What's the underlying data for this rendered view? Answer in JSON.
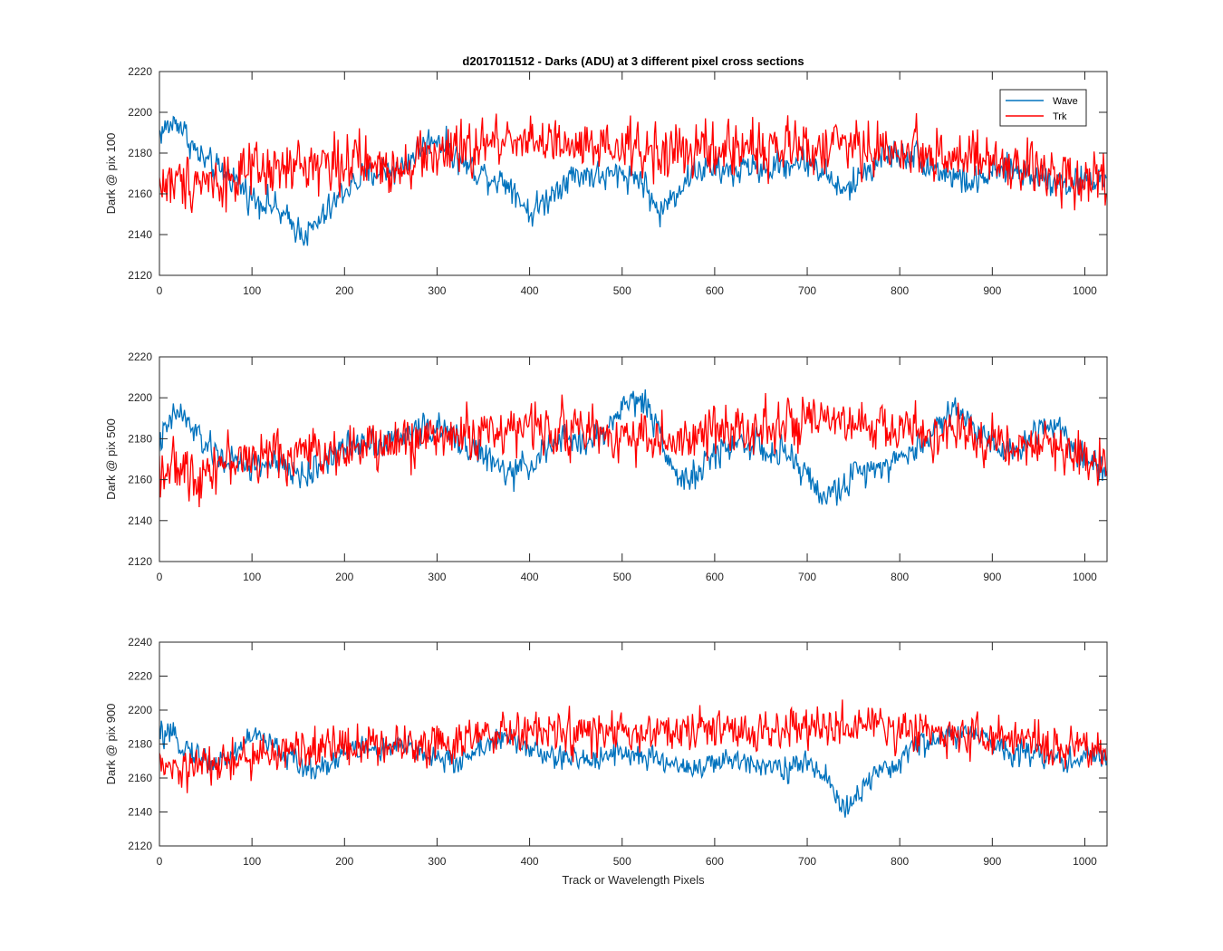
{
  "chart_data": [
    {
      "type": "line",
      "title": "d2017011512 - Darks (ADU) at 3 different pixel cross sections",
      "xlabel": "",
      "ylabel": "Dark @ pix 100",
      "xlim": [
        0,
        1024
      ],
      "ylim": [
        2120,
        2220
      ],
      "xticks": [
        0,
        100,
        200,
        300,
        400,
        500,
        600,
        700,
        800,
        900,
        1000
      ],
      "yticks": [
        2120,
        2140,
        2160,
        2180,
        2200,
        2220
      ],
      "legend": {
        "placement": "top-right",
        "entries": [
          "Wave",
          "Trk"
        ]
      },
      "series": [
        {
          "name": "Wave",
          "color": "#0072bd",
          "x": [
            0,
            20,
            40,
            60,
            80,
            100,
            120,
            140,
            160,
            180,
            200,
            220,
            240,
            260,
            280,
            300,
            320,
            340,
            360,
            380,
            400,
            420,
            440,
            460,
            480,
            500,
            520,
            540,
            560,
            580,
            600,
            620,
            640,
            660,
            680,
            700,
            720,
            740,
            760,
            780,
            800,
            820,
            840,
            860,
            880,
            900,
            920,
            940,
            960,
            980,
            1000,
            1024
          ],
          "y": [
            2190,
            2196,
            2180,
            2172,
            2168,
            2158,
            2155,
            2146,
            2140,
            2150,
            2162,
            2168,
            2172,
            2172,
            2182,
            2188,
            2178,
            2172,
            2168,
            2165,
            2150,
            2158,
            2168,
            2170,
            2168,
            2170,
            2168,
            2150,
            2162,
            2172,
            2172,
            2170,
            2174,
            2172,
            2175,
            2176,
            2170,
            2160,
            2170,
            2178,
            2180,
            2178,
            2172,
            2168,
            2165,
            2170,
            2172,
            2170,
            2168,
            2165,
            2166,
            2168
          ],
          "noise": 6
        },
        {
          "name": "Trk",
          "color": "#ff0000",
          "x": [
            0,
            20,
            40,
            60,
            80,
            100,
            120,
            140,
            160,
            180,
            200,
            220,
            240,
            260,
            280,
            300,
            320,
            340,
            360,
            380,
            400,
            420,
            440,
            460,
            480,
            500,
            520,
            540,
            560,
            580,
            600,
            620,
            640,
            660,
            680,
            700,
            720,
            740,
            760,
            780,
            800,
            820,
            840,
            860,
            880,
            900,
            920,
            940,
            960,
            980,
            1000,
            1024
          ],
          "y": [
            2165,
            2165,
            2168,
            2166,
            2168,
            2170,
            2170,
            2172,
            2175,
            2175,
            2176,
            2175,
            2172,
            2175,
            2178,
            2180,
            2180,
            2182,
            2185,
            2188,
            2188,
            2184,
            2182,
            2182,
            2180,
            2182,
            2182,
            2180,
            2180,
            2182,
            2180,
            2182,
            2184,
            2182,
            2182,
            2184,
            2182,
            2185,
            2182,
            2182,
            2180,
            2182,
            2180,
            2178,
            2176,
            2175,
            2172,
            2172,
            2170,
            2170,
            2168,
            2170
          ],
          "noise": 11
        }
      ]
    },
    {
      "type": "line",
      "xlabel": "",
      "ylabel": "Dark @ pix 500",
      "xlim": [
        0,
        1024
      ],
      "ylim": [
        2120,
        2220
      ],
      "xticks": [
        0,
        100,
        200,
        300,
        400,
        500,
        600,
        700,
        800,
        900,
        1000
      ],
      "yticks": [
        2120,
        2140,
        2160,
        2180,
        2200,
        2220
      ],
      "series": [
        {
          "name": "Wave",
          "color": "#0072bd",
          "x": [
            0,
            20,
            40,
            60,
            80,
            100,
            120,
            140,
            160,
            180,
            200,
            220,
            240,
            260,
            280,
            300,
            320,
            340,
            360,
            380,
            400,
            420,
            440,
            460,
            480,
            500,
            520,
            540,
            560,
            580,
            600,
            620,
            640,
            660,
            680,
            700,
            720,
            740,
            760,
            780,
            800,
            820,
            840,
            860,
            880,
            900,
            920,
            940,
            960,
            980,
            1000,
            1024
          ],
          "y": [
            2178,
            2194,
            2182,
            2172,
            2168,
            2166,
            2168,
            2164,
            2162,
            2170,
            2175,
            2180,
            2178,
            2180,
            2185,
            2185,
            2180,
            2175,
            2168,
            2162,
            2168,
            2175,
            2180,
            2178,
            2182,
            2196,
            2200,
            2185,
            2160,
            2162,
            2172,
            2178,
            2178,
            2172,
            2172,
            2162,
            2150,
            2158,
            2165,
            2168,
            2170,
            2176,
            2186,
            2196,
            2185,
            2180,
            2172,
            2180,
            2190,
            2182,
            2170,
            2165
          ],
          "noise": 6
        },
        {
          "name": "Trk",
          "color": "#ff0000",
          "x": [
            0,
            20,
            40,
            60,
            80,
            100,
            120,
            140,
            160,
            180,
            200,
            220,
            240,
            260,
            280,
            300,
            320,
            340,
            360,
            380,
            400,
            420,
            440,
            460,
            480,
            500,
            520,
            540,
            560,
            580,
            600,
            620,
            640,
            660,
            680,
            700,
            720,
            740,
            760,
            780,
            800,
            820,
            840,
            860,
            880,
            900,
            920,
            940,
            960,
            980,
            1000,
            1024
          ],
          "y": [
            2166,
            2165,
            2162,
            2168,
            2170,
            2170,
            2172,
            2172,
            2174,
            2174,
            2176,
            2175,
            2176,
            2178,
            2180,
            2182,
            2182,
            2182,
            2184,
            2185,
            2185,
            2186,
            2185,
            2184,
            2182,
            2182,
            2182,
            2180,
            2176,
            2180,
            2184,
            2186,
            2186,
            2188,
            2186,
            2186,
            2188,
            2186,
            2186,
            2186,
            2184,
            2184,
            2182,
            2182,
            2180,
            2180,
            2178,
            2176,
            2176,
            2174,
            2172,
            2168
          ],
          "noise": 10
        }
      ]
    },
    {
      "type": "line",
      "xlabel": "Track or Wavelength Pixels",
      "ylabel": "Dark @ pix 900",
      "xlim": [
        0,
        1024
      ],
      "ylim": [
        2120,
        2240
      ],
      "xticks": [
        0,
        100,
        200,
        300,
        400,
        500,
        600,
        700,
        800,
        900,
        1000
      ],
      "yticks": [
        2120,
        2140,
        2160,
        2180,
        2200,
        2220,
        2240
      ],
      "series": [
        {
          "name": "Wave",
          "color": "#0072bd",
          "x": [
            0,
            20,
            40,
            60,
            80,
            100,
            120,
            140,
            160,
            180,
            200,
            220,
            240,
            260,
            280,
            300,
            320,
            340,
            360,
            380,
            400,
            420,
            440,
            460,
            480,
            500,
            520,
            540,
            560,
            580,
            600,
            620,
            640,
            660,
            680,
            700,
            720,
            740,
            760,
            780,
            800,
            820,
            840,
            860,
            880,
            900,
            920,
            940,
            960,
            980,
            1000,
            1024
          ],
          "y": [
            2186,
            2182,
            2174,
            2168,
            2174,
            2186,
            2180,
            2172,
            2165,
            2168,
            2175,
            2178,
            2176,
            2178,
            2176,
            2172,
            2168,
            2176,
            2182,
            2182,
            2178,
            2172,
            2172,
            2170,
            2174,
            2176,
            2172,
            2170,
            2168,
            2166,
            2168,
            2170,
            2170,
            2168,
            2166,
            2168,
            2162,
            2140,
            2155,
            2162,
            2170,
            2180,
            2182,
            2186,
            2186,
            2180,
            2176,
            2176,
            2172,
            2170,
            2172,
            2174
          ],
          "noise": 6
        },
        {
          "name": "Trk",
          "color": "#ff0000",
          "x": [
            0,
            20,
            40,
            60,
            80,
            100,
            120,
            140,
            160,
            180,
            200,
            220,
            240,
            260,
            280,
            300,
            320,
            340,
            360,
            380,
            400,
            420,
            440,
            460,
            480,
            500,
            520,
            540,
            560,
            580,
            600,
            620,
            640,
            660,
            680,
            700,
            720,
            740,
            760,
            780,
            800,
            820,
            840,
            860,
            880,
            900,
            920,
            940,
            960,
            980,
            1000,
            1024
          ],
          "y": [
            2166,
            2164,
            2166,
            2168,
            2170,
            2172,
            2174,
            2176,
            2178,
            2178,
            2180,
            2180,
            2180,
            2180,
            2180,
            2182,
            2182,
            2184,
            2184,
            2186,
            2188,
            2186,
            2186,
            2186,
            2186,
            2186,
            2186,
            2186,
            2186,
            2188,
            2188,
            2188,
            2188,
            2188,
            2188,
            2190,
            2190,
            2190,
            2190,
            2190,
            2188,
            2188,
            2188,
            2186,
            2186,
            2184,
            2182,
            2180,
            2180,
            2178,
            2176,
            2176
          ],
          "noise": 10
        }
      ]
    }
  ]
}
